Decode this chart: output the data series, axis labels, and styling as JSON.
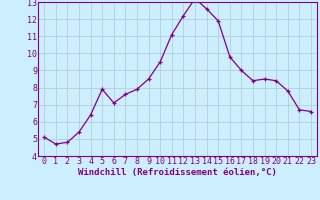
{
  "x": [
    0,
    1,
    2,
    3,
    4,
    5,
    6,
    7,
    8,
    9,
    10,
    11,
    12,
    13,
    14,
    15,
    16,
    17,
    18,
    19,
    20,
    21,
    22,
    23
  ],
  "y": [
    5.1,
    4.7,
    4.8,
    5.4,
    6.4,
    7.9,
    7.1,
    7.6,
    7.9,
    8.5,
    9.5,
    11.1,
    12.2,
    13.2,
    12.6,
    11.9,
    9.8,
    9.0,
    8.4,
    8.5,
    8.4,
    7.8,
    6.7,
    6.6
  ],
  "line_color": "#800080",
  "marker": "+",
  "marker_color": "#800080",
  "bg_color": "#cceeff",
  "grid_color": "#aacccc",
  "axis_color": "#800080",
  "spine_color": "#800080",
  "xlabel": "Windchill (Refroidissement éolien,°C)",
  "xlabel_fontsize": 6.5,
  "tick_fontsize": 6.0,
  "xlim": [
    -0.5,
    23.5
  ],
  "ylim": [
    4,
    13
  ],
  "yticks": [
    4,
    5,
    6,
    7,
    8,
    9,
    10,
    11,
    12,
    13
  ],
  "xticks": [
    0,
    1,
    2,
    3,
    4,
    5,
    6,
    7,
    8,
    9,
    10,
    11,
    12,
    13,
    14,
    15,
    16,
    17,
    18,
    19,
    20,
    21,
    22,
    23
  ]
}
